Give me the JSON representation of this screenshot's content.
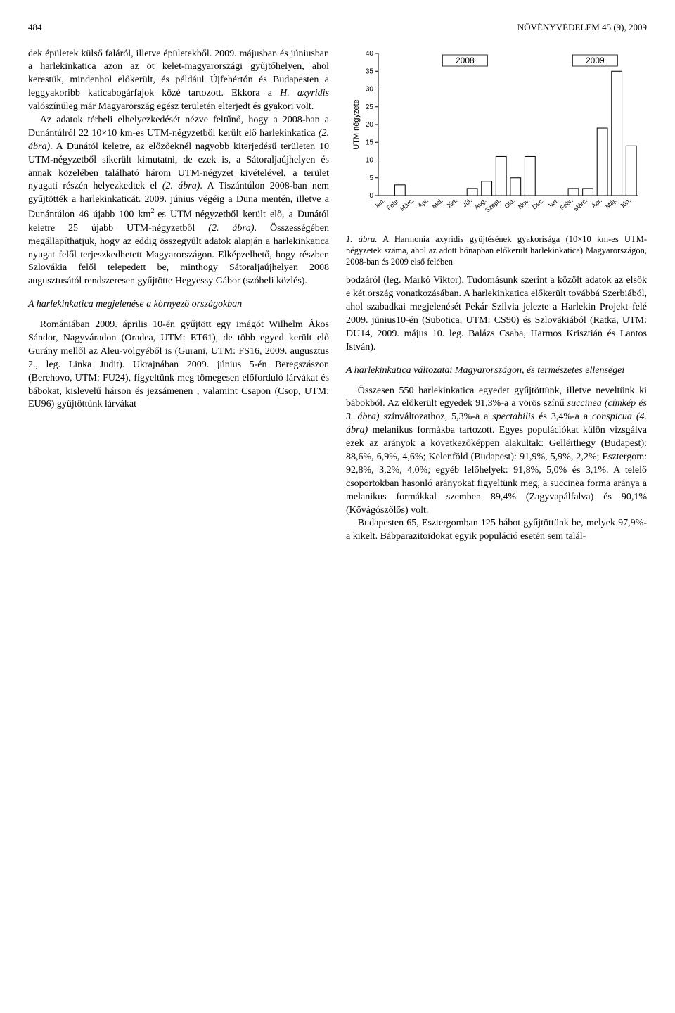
{
  "header": {
    "page_number": "484",
    "journal_ref": "NÖVÉNYVÉDELEM 45 (9), 2009"
  },
  "left_col": {
    "para1": "dek épületek külső faláról, illetve épületekből. 2009. májusban és júniusban a harlekinkatica azon az öt kelet-magyarországi gyűjtőhelyen, ahol kerestük, mindenhol előkerült, és például Újfehértón és Budapesten a leggyakoribb katicabogárfajok közé tartozott. Ekkora a ",
    "para1b": " valószínűleg már Magyarország egész területén elterjedt és gyakori volt.",
    "sp1": "H. axyridis",
    "para2a": "Az adatok térbeli elhelyezkedését nézve feltűnő, hogy a 2008-ban a Dunántúlról 22 10×10 km-es UTM-négyzetből került elő harlekinkatica ",
    "fig2a": "(2. ábra)",
    "para2b": ". A Dunától keletre, az előzőeknél nagyobb kiterjedésű területen 10 UTM-négyzetből sikerült kimutatni, de ezek is, a Sátoraljaújhelyen és annak közelében található három UTM-négyzet kivételével, a terület nyugati részén helyezkedtek el ",
    "fig2b": "(2. ábra)",
    "para2c": ". A Tiszántúlon 2008-ban nem gyűjtötték a harlekinkaticát. 2009. június végéig a Duna mentén, illetve a Dunántúlon 46 újabb 100 km",
    "sup2": "2",
    "para2d": "-es UTM-négyzetből került elő, a Dunától keletre 25 újabb UTM-négyzetből ",
    "fig2c": "(2. ábra)",
    "para2e": ". Összességében megállapíthatjuk, hogy az eddig összegyűlt adatok alapján a harlekinkatica nyugat felől terjeszkedhetett Magyarországon. Elképzelhető, hogy részben Szlovákia felől telepedett be, minthogy Sátoraljaújhelyen 2008 augusztusától rendszeresen gyűjtötte Hegyessy Gábor (szóbeli közlés).",
    "heading2": "A harlekinkatica megjelenése a környező országokban",
    "para3": "Romániában 2009. április 10-én gyűjtött egy imágót Wilhelm Ákos Sándor, Nagyváradon (Oradea, UTM: ET61), de több egyed került elő Gurány mellől az Aleu-völgyéből is (Gurani, UTM: FS16, 2009. augusztus 2., leg. Linka Judit). Ukrajnában 2009. június 5-én Beregszászon (Berehovo, UTM: FU24), figyeltünk meg tömegesen előforduló lárvákat és bábokat, kislevelű hárson és jezsámenen , valamint Csapon (Csop, UTM: EU96) gyűjtöttünk lárvákat"
  },
  "right_col": {
    "para1": "bodzáról (leg. Markó Viktor). Tudomásunk szerint a közölt adatok az elsők e két ország vonatkozásában. A harlekinkatica előkerült továbbá Szerbiából, ahol szabadkai megjelenését Pekár Szilvia jelezte a Harlekin Projekt felé 2009. június10-én (Subotica, UTM: CS90) és Szlovákiából (Ratka, UTM: DU14, 2009. május 10. leg. Balázs Csaba, Harmos Krisztián és Lantos István).",
    "heading1": "A harlekinkatica változatai Magyarországon, és természetes ellenségei",
    "para2a": "Összesen 550 harlekinkatica egyedet gyűjtöttünk, illetve neveltünk ki bábokból. Az előkerült egyedek 91,3%-a a vörös színű ",
    "sp_succ": "succinea (címkép és 3. ábra)",
    "para2b": " színváltozathoz, 5,3%-a a ",
    "sp_spec": "spectabilis",
    "para2c": " és 3,4%-a a ",
    "sp_con": "conspicua (4. ábra)",
    "para2d": " melanikus formákba tartozott. Egyes populációkat külön vizsgálva ezek az arányok a következőképpen alakultak: Gellérthegy (Budapest): 88,6%, 6,9%, 4,6%; Kelenföld (Budapest): 91,9%, 5,9%, 2,2%; Esztergom: 92,8%, 3,2%, 4,0%; egyéb lelőhelyek: 91,8%, 5,0% és 3,1%. A telelő csoportokban hasonló arányokat figyeltünk meg, a succinea forma aránya a melanikus formákkal szemben 89,4% (Zagyvapálfalva) és 90,1% (Kővágószőlős) volt.",
    "para3": "Budapesten 65, Esztergomban 125 bábot gyűjtöttünk be, melyek 97,9%-a kikelt. Bábparazitoidokat egyik populáció esetén sem talál-"
  },
  "chart": {
    "type": "bar",
    "y_label": "UTM négyzete",
    "y_ticks": [
      0,
      5,
      10,
      15,
      20,
      25,
      30,
      35,
      40
    ],
    "ylim": [
      0,
      40
    ],
    "bar_fill": "#ffffff",
    "bar_stroke": "#000000",
    "bar_stroke_width": 1,
    "bar_width_ratio": 0.72,
    "legend_items": [
      "2008",
      "2009"
    ],
    "months": [
      "Jan.",
      "Febr.",
      "Márc.",
      "Ápr.",
      "Máj.",
      "Jún.",
      "Júl.",
      "Aug.",
      "Szept.",
      "Okt.",
      "Nov.",
      "Dec.",
      "Jan.",
      "Febr.",
      "Márc.",
      "Ápr.",
      "Máj.",
      "Jún."
    ],
    "values": [
      0,
      3,
      0,
      0,
      0,
      0,
      2,
      4,
      11,
      5,
      11,
      0,
      0,
      2,
      2,
      19,
      35,
      14
    ],
    "divider_after_index": 11,
    "caption_lead": "1. ábra.",
    "caption": " A Harmonia axyridis gyűjtésének gyakorisága (10×10 km-es UTM-négyzetek száma, ahol az adott hónapban előkerült harlekinkatica) Magyarországon, 2008-ban és 2009 első felében",
    "font_family": "Arial, Helvetica, sans-serif",
    "tick_fontsize": 10,
    "label_fontsize": 11,
    "month_fontsize": 9,
    "background_color": "#ffffff",
    "axis_color": "#000000"
  }
}
